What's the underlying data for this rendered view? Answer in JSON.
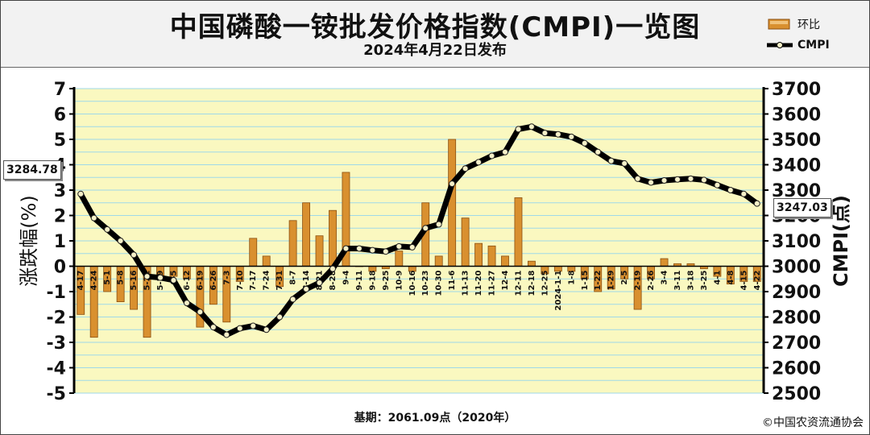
{
  "title": "中国磷酸一铵批发价格指数(CMPI)一览图",
  "subtitle": "2024年4月22日发布",
  "legend": {
    "bar_label": "环比",
    "line_label": "CMPI"
  },
  "footer": {
    "base": "基期：2061.09点（2020年）",
    "copyright": "©中国农资流通协会"
  },
  "callouts": {
    "start": "3284.78",
    "end": "3247.03"
  },
  "colors": {
    "plot_bg": "#faf8c0",
    "grid": "#9fd9e8",
    "bar_fill": "#d9902f",
    "bar_edge": "#8a4f10",
    "line": "#000000",
    "marker": "#f5f0c8"
  },
  "chart_data": {
    "type": "bar+line",
    "categories": [
      "4-17",
      "4-24",
      "5-1",
      "5-8",
      "5-16",
      "5-22",
      "5-29",
      "6-5",
      "6-12",
      "6-19",
      "6-26",
      "7-3",
      "7-10",
      "7-17",
      "7-24",
      "7-31",
      "8-7",
      "8-14",
      "8-21",
      "8-28",
      "9-4",
      "9-11",
      "9-18",
      "9-25",
      "10-9",
      "10-16",
      "10-23",
      "10-30",
      "11-6",
      "11-13",
      "11-20",
      "11-27",
      "12-4",
      "12-11",
      "12-18",
      "12-25",
      "2024-1-1",
      "1-8",
      "1-15",
      "1-22",
      "1-29",
      "2-5",
      "2-19",
      "2-26",
      "3-4",
      "3-11",
      "3-18",
      "3-25",
      "4-1",
      "4-8",
      "4-15",
      "4-22"
    ],
    "series": [
      {
        "name": "环比",
        "axis": "left",
        "type": "bar",
        "values": [
          -1.9,
          -2.8,
          -1.0,
          -1.4,
          -1.7,
          -2.8,
          -0.5,
          -0.4,
          -0.5,
          -2.4,
          -1.5,
          -2.2,
          -0.6,
          1.1,
          0.4,
          -0.8,
          1.8,
          2.5,
          1.2,
          2.2,
          3.7,
          0.0,
          -0.2,
          -0.1,
          0.6,
          -0.2,
          2.5,
          0.4,
          5.0,
          1.9,
          0.9,
          0.8,
          0.4,
          2.7,
          0.2,
          -0.3,
          -0.2,
          -0.2,
          -0.5,
          -1.0,
          -0.9,
          -0.5,
          -1.7,
          -0.5,
          0.3,
          0.1,
          0.1,
          -0.1,
          -0.4,
          -0.7,
          -0.6,
          -0.6
        ]
      },
      {
        "name": "CMPI",
        "axis": "right",
        "type": "line",
        "values": [
          3284.78,
          3190,
          3145,
          3100,
          3045,
          2960,
          2955,
          2945,
          2855,
          2820,
          2760,
          2730,
          2755,
          2765,
          2750,
          2800,
          2870,
          2910,
          2935,
          2990,
          3070,
          3070,
          3063,
          3058,
          3078,
          3075,
          3150,
          3165,
          3325,
          3385,
          3410,
          3435,
          3450,
          3540,
          3550,
          3525,
          3520,
          3510,
          3485,
          3450,
          3415,
          3405,
          3345,
          3330,
          3338,
          3342,
          3345,
          3340,
          3320,
          3300,
          3285,
          3247.03
        ]
      }
    ],
    "left_axis": {
      "label": "涨跌幅(%)",
      "range": [
        -5,
        7
      ],
      "ticks": [
        "-5",
        "-4",
        "-3",
        "-2",
        "-1",
        "0",
        "1",
        "2",
        "3",
        "4",
        "5",
        "6",
        "7"
      ]
    },
    "right_axis": {
      "label": "CMPI(点)",
      "range": [
        2500,
        3700
      ],
      "ticks": [
        "2500",
        "2600",
        "2700",
        "2800",
        "2900",
        "3000",
        "3100",
        "3200",
        "3300",
        "3400",
        "3500",
        "3600",
        "3700"
      ]
    },
    "grid": true,
    "legend_position": "top-right"
  }
}
